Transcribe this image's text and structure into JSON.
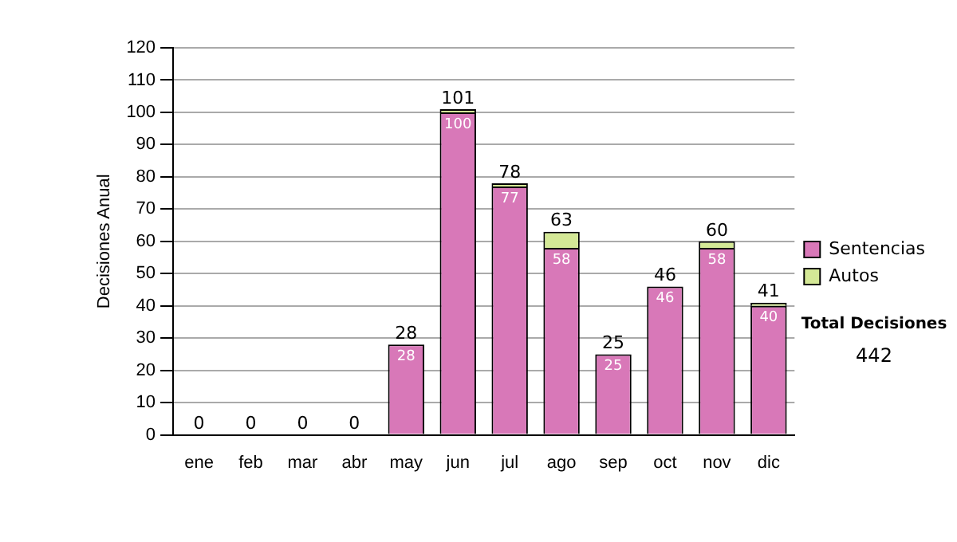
{
  "chart_data": {
    "type": "bar",
    "stacked": true,
    "ylabel": "Decisiones Anual",
    "categories": [
      "ene",
      "feb",
      "mar",
      "abr",
      "may",
      "jun",
      "jul",
      "ago",
      "sep",
      "oct",
      "nov",
      "dic"
    ],
    "series": [
      {
        "name": "Sentencias",
        "color": "#d878b8",
        "values": [
          0,
          0,
          0,
          0,
          28,
          100,
          77,
          58,
          25,
          46,
          58,
          40
        ],
        "value_labels": [
          null,
          null,
          null,
          null,
          "28",
          "100",
          "77",
          "58",
          "25",
          "46",
          "58",
          "40"
        ]
      },
      {
        "name": "Autos",
        "color": "#d4e896",
        "values": [
          0,
          0,
          0,
          0,
          0,
          1,
          1,
          5,
          0,
          0,
          2,
          1
        ]
      }
    ],
    "totals": [
      "0",
      "0",
      "0",
      "0",
      "28",
      "101",
      "78",
      "63",
      "25",
      "46",
      "60",
      "41"
    ],
    "ylim": [
      0,
      120
    ],
    "yticks": [
      0,
      10,
      20,
      30,
      40,
      50,
      60,
      70,
      80,
      90,
      100,
      110,
      120
    ],
    "grid": "y",
    "legend": "right",
    "annotations": [
      "Total Decisiones",
      "442"
    ]
  }
}
